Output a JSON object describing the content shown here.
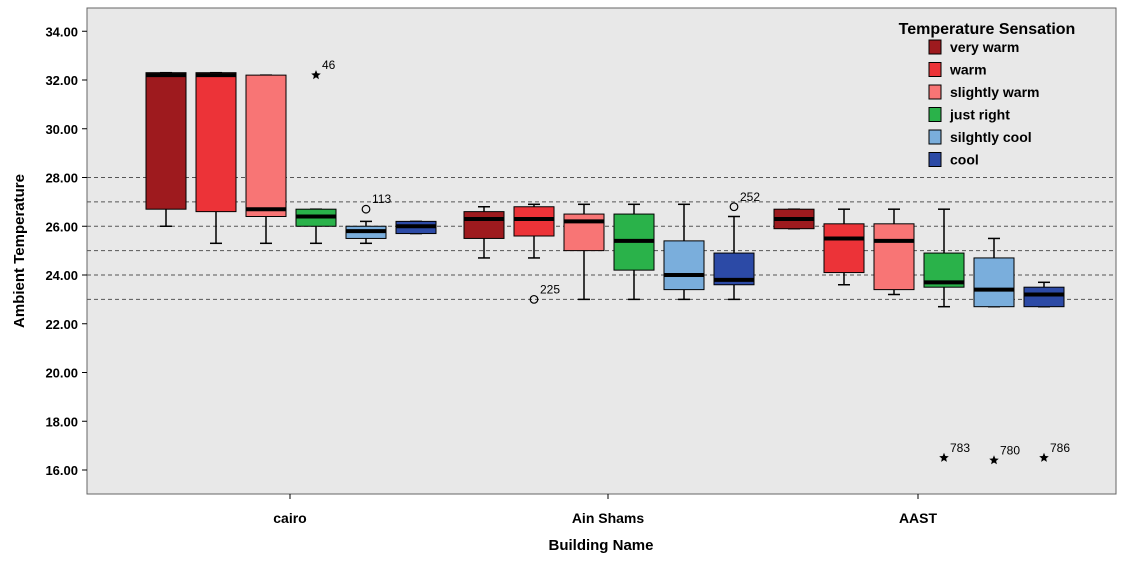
{
  "chart_data": {
    "type": "boxplot",
    "xlabel": "Building Name",
    "ylabel": "Ambient Temperature",
    "ylim": [
      15,
      35
    ],
    "yticks": [
      "16.00",
      "18.00",
      "20.00",
      "22.00",
      "24.00",
      "26.00",
      "28.00",
      "30.00",
      "32.00",
      "34.00"
    ],
    "categories": [
      "cairo",
      "Ain Shams",
      "AAST"
    ],
    "reference_lines": [
      23,
      24,
      25,
      26,
      27,
      28
    ],
    "legend": {
      "title": "Temperature Sensation",
      "position": "top-right",
      "entries": [
        {
          "name": "very warm",
          "color": "#9e1a1e"
        },
        {
          "name": "warm",
          "color": "#ec3338"
        },
        {
          "name": "slightly warm",
          "color": "#f87575"
        },
        {
          "name": "just right",
          "color": "#2ab24a"
        },
        {
          "name": "silghtly cool",
          "color": "#7aaedc"
        },
        {
          "name": "cool",
          "color": "#2c4aa6"
        }
      ]
    },
    "groups": [
      {
        "category": "cairo",
        "boxes": [
          {
            "series": "very warm",
            "min": 26.0,
            "q1": 26.7,
            "median": 32.2,
            "q3": 32.3,
            "max": 32.3
          },
          {
            "series": "warm",
            "min": 25.3,
            "q1": 26.6,
            "median": 32.2,
            "q3": 32.3,
            "max": 32.3
          },
          {
            "series": "slightly warm",
            "min": 25.3,
            "q1": 26.4,
            "median": 26.7,
            "q3": 32.2,
            "max": 32.2
          },
          {
            "series": "just right",
            "min": 25.3,
            "q1": 26.0,
            "median": 26.4,
            "q3": 26.7,
            "max": 26.7,
            "outliers": [
              {
                "value": 32.2,
                "label": "46",
                "marker": "star"
              }
            ]
          },
          {
            "series": "silghtly cool",
            "min": 25.3,
            "q1": 25.5,
            "median": 25.8,
            "q3": 26.0,
            "max": 26.2,
            "outliers": [
              {
                "value": 26.7,
                "label": "113",
                "marker": "circle"
              }
            ]
          },
          {
            "series": "cool",
            "min": 25.7,
            "q1": 25.7,
            "median": 26.0,
            "q3": 26.2,
            "max": 26.2
          }
        ]
      },
      {
        "category": "Ain Shams",
        "boxes": [
          {
            "series": "very warm",
            "min": 24.7,
            "q1": 25.5,
            "median": 26.3,
            "q3": 26.6,
            "max": 26.8
          },
          {
            "series": "warm",
            "min": 24.7,
            "q1": 25.6,
            "median": 26.3,
            "q3": 26.8,
            "max": 26.9,
            "outliers": [
              {
                "value": 23.0,
                "label": "225",
                "marker": "circle"
              }
            ]
          },
          {
            "series": "slightly warm",
            "min": 23.0,
            "q1": 25.0,
            "median": 26.2,
            "q3": 26.5,
            "max": 26.9
          },
          {
            "series": "just right",
            "min": 23.0,
            "q1": 24.2,
            "median": 25.4,
            "q3": 26.5,
            "max": 26.9
          },
          {
            "series": "silghtly cool",
            "min": 23.0,
            "q1": 23.4,
            "median": 24.0,
            "q3": 25.4,
            "max": 26.9
          },
          {
            "series": "cool",
            "min": 23.0,
            "q1": 23.6,
            "median": 23.8,
            "q3": 24.9,
            "max": 26.4,
            "outliers": [
              {
                "value": 26.8,
                "label": "252",
                "marker": "circle"
              }
            ]
          }
        ]
      },
      {
        "category": "AAST",
        "boxes": [
          {
            "series": "very warm",
            "min": 25.9,
            "q1": 25.9,
            "median": 26.3,
            "q3": 26.7,
            "max": 26.7
          },
          {
            "series": "warm",
            "min": 23.6,
            "q1": 24.1,
            "median": 25.5,
            "q3": 26.1,
            "max": 26.7
          },
          {
            "series": "slightly warm",
            "min": 23.2,
            "q1": 23.4,
            "median": 25.4,
            "q3": 26.1,
            "max": 26.7
          },
          {
            "series": "just right",
            "min": 22.7,
            "q1": 23.5,
            "median": 23.7,
            "q3": 24.9,
            "max": 26.7,
            "outliers": [
              {
                "value": 16.5,
                "label": "783",
                "marker": "star"
              }
            ]
          },
          {
            "series": "silghtly cool",
            "min": 22.7,
            "q1": 22.7,
            "median": 23.4,
            "q3": 24.7,
            "max": 25.5,
            "outliers": [
              {
                "value": 16.4,
                "label": "780",
                "marker": "star"
              }
            ]
          },
          {
            "series": "cool",
            "min": 22.7,
            "q1": 22.7,
            "median": 23.2,
            "q3": 23.5,
            "max": 23.7,
            "outliers": [
              {
                "value": 16.5,
                "label": "786",
                "marker": "star"
              }
            ]
          }
        ]
      }
    ]
  }
}
